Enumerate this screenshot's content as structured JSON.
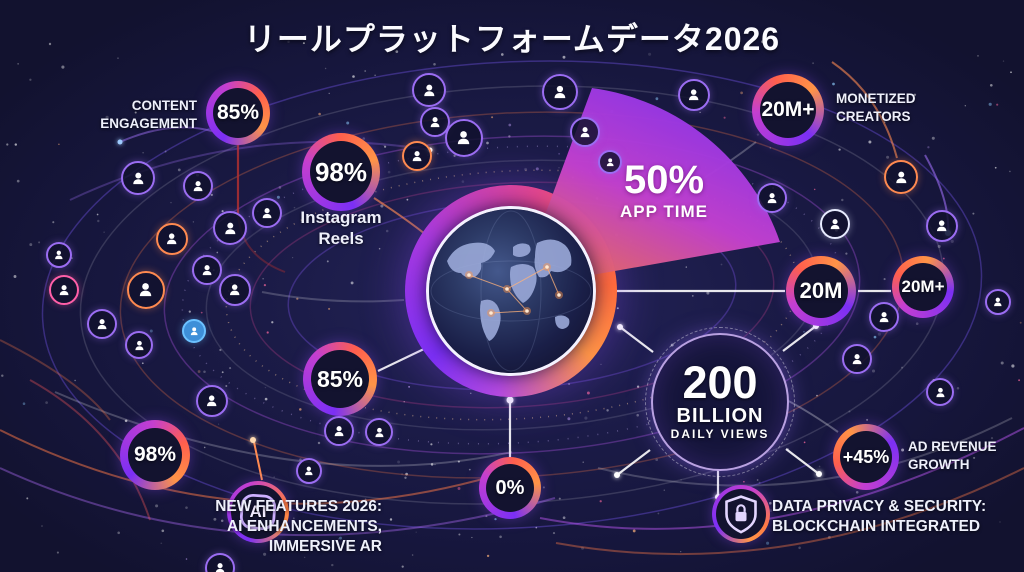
{
  "title": "リールプラットフォームデータ2026",
  "colors": {
    "background": "#16163c",
    "accent_purple": "#8b35ec",
    "accent_magenta": "#d83f9e",
    "accent_orange": "#ff7a3d",
    "text": "#ffffff"
  },
  "stats": {
    "content_engagement": {
      "value": "85%",
      "label": "CONTENT ENGAGEMENT"
    },
    "instagram_reels": {
      "value": "98%",
      "label": "Instagram Reels"
    },
    "monetized_creators": {
      "value": "20M+",
      "label": "MONETIZED CREATORS"
    },
    "app_time": {
      "value": "50%",
      "label": "APP TIME"
    },
    "creators_20m": {
      "value": "20M"
    },
    "creators_20m_plus": {
      "value": "20M+"
    },
    "engagement_mid": {
      "value": "85%"
    },
    "engagement_bottom": {
      "value": "98%"
    },
    "zero_metric": {
      "value": "0%"
    },
    "ad_revenue_growth": {
      "value": "+45%",
      "label": "AD REVENUE GROWTH"
    },
    "daily_views": {
      "value": "200",
      "unit": "BILLION",
      "label": "DAILY VIEWS"
    }
  },
  "callouts": {
    "new_features": {
      "line1": "NEW FEATURES 2026:",
      "line2": "AI ENHANCEMENTS,",
      "line3": "IMMERSIVE AR",
      "badge_text": "AI"
    },
    "privacy": {
      "line1": "DATA PRIVACY & SECURITY:",
      "line2": "BLOCKCHAIN INTEGRATED"
    }
  },
  "icons": {
    "center": "globe-network-icon",
    "nodes": "user-avatar-icon",
    "new_features": "ai-chip-icon",
    "privacy": "shield-lock-icon"
  }
}
